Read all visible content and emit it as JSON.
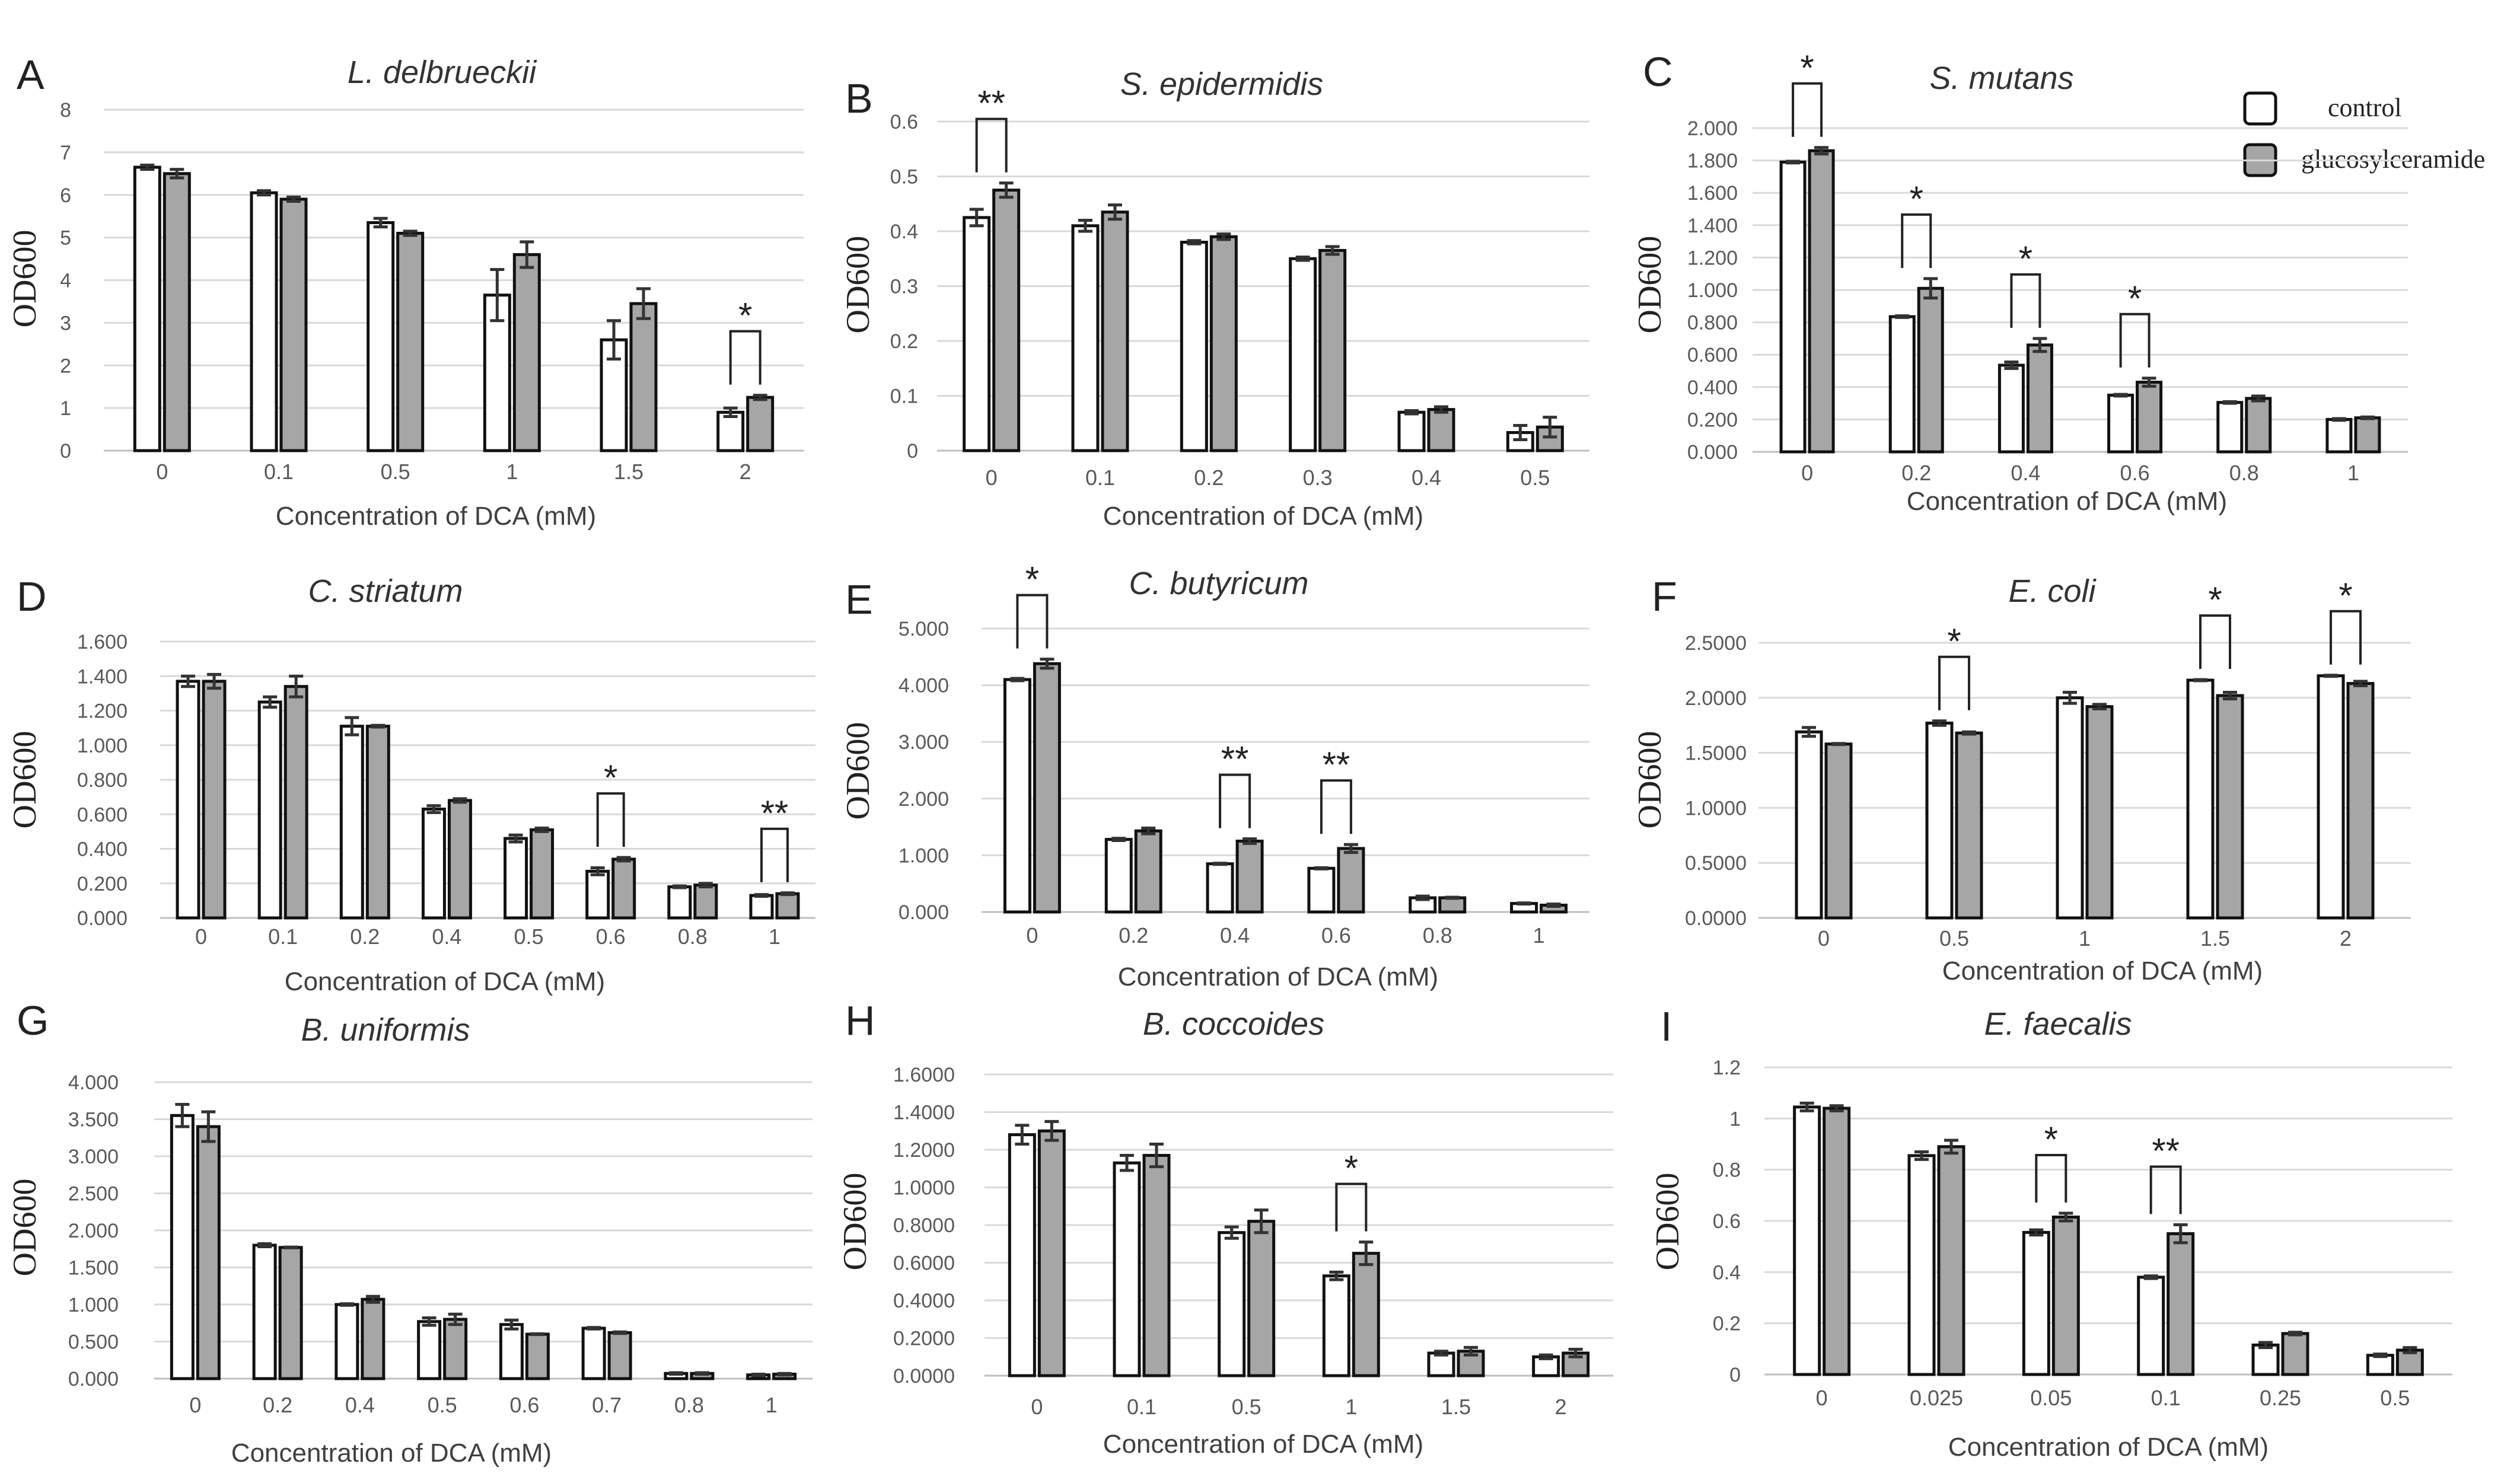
{
  "legend": {
    "items": [
      {
        "label": "control",
        "color": "#ffffff"
      },
      {
        "label": "glucosylceramide",
        "color": "#a6a6a6"
      }
    ]
  },
  "colors": {
    "control": "#ffffff",
    "glucosylceramide": "#a6a6a6",
    "grid": "#d9d9d9"
  },
  "chart_data": [
    {
      "type": "bar",
      "panel": "A",
      "title": "L. delbrueckii",
      "xlabel": "Concentration of DCA (mM)",
      "ylabel": "OD600",
      "categories": [
        "0",
        "0.1",
        "0.5",
        "1",
        "1.5",
        "2"
      ],
      "yticks": [
        "0",
        "1",
        "2",
        "3",
        "4",
        "5",
        "6",
        "7",
        "8"
      ],
      "ylim": [
        0,
        8
      ],
      "series": [
        {
          "name": "control",
          "values": [
            6.65,
            6.05,
            5.35,
            3.65,
            2.6,
            0.9
          ],
          "errors": [
            0.05,
            0.05,
            0.1,
            0.6,
            0.45,
            0.1
          ]
        },
        {
          "name": "glucosylceramide",
          "values": [
            6.5,
            5.9,
            5.1,
            4.6,
            3.45,
            1.25
          ],
          "errors": [
            0.1,
            0.05,
            0.05,
            0.3,
            0.35,
            0.05
          ]
        }
      ],
      "annotations": [
        {
          "category": "2",
          "text": "*"
        }
      ]
    },
    {
      "type": "bar",
      "panel": "B",
      "title": "S. epidermidis",
      "xlabel": "Concentration of DCA (mM)",
      "ylabel": "OD600",
      "categories": [
        "0",
        "0.1",
        "0.2",
        "0.3",
        "0.4",
        "0.5"
      ],
      "yticks": [
        "0",
        "0.1",
        "0.2",
        "0.3",
        "0.4",
        "0.5",
        "0.6"
      ],
      "ylim": [
        0,
        0.6
      ],
      "series": [
        {
          "name": "control",
          "values": [
            0.425,
            0.41,
            0.38,
            0.35,
            0.07,
            0.033
          ],
          "errors": [
            0.015,
            0.01,
            0.003,
            0.003,
            0.003,
            0.013
          ]
        },
        {
          "name": "glucosylceramide",
          "values": [
            0.475,
            0.435,
            0.39,
            0.365,
            0.075,
            0.043
          ],
          "errors": [
            0.013,
            0.013,
            0.005,
            0.007,
            0.005,
            0.018
          ]
        }
      ],
      "annotations": [
        {
          "category": "0",
          "text": "**"
        }
      ]
    },
    {
      "type": "bar",
      "panel": "C",
      "title": "S. mutans",
      "xlabel": "Concentration of DCA (mM)",
      "ylabel": "OD600",
      "categories": [
        "0",
        "0.2",
        "0.4",
        "0.6",
        "0.8",
        "1"
      ],
      "yticks": [
        "0.000",
        "0.200",
        "0.400",
        "0.600",
        "0.800",
        "1.000",
        "1.200",
        "1.400",
        "1.600",
        "1.800",
        "2.000"
      ],
      "ylim": [
        0,
        2
      ],
      "series": [
        {
          "name": "control",
          "values": [
            1.79,
            0.835,
            0.535,
            0.35,
            0.305,
            0.2
          ],
          "errors": [
            0.005,
            0.005,
            0.02,
            0.005,
            0.005,
            0.005
          ]
        },
        {
          "name": "glucosylceramide",
          "values": [
            1.86,
            1.01,
            0.66,
            0.43,
            0.33,
            0.21
          ],
          "errors": [
            0.02,
            0.06,
            0.04,
            0.025,
            0.015,
            0.005
          ]
        }
      ],
      "annotations": [
        {
          "category": "0",
          "text": "*"
        },
        {
          "category": "0.2",
          "text": "*"
        },
        {
          "category": "0.4",
          "text": "*"
        },
        {
          "category": "0.6",
          "text": "*"
        }
      ]
    },
    {
      "type": "bar",
      "panel": "D",
      "title": "C. striatum",
      "xlabel": "Concentration of DCA (mM)",
      "ylabel": "OD600",
      "categories": [
        "0",
        "0.1",
        "0.2",
        "0.4",
        "0.5",
        "0.6",
        "0.8",
        "1"
      ],
      "yticks": [
        "0.000",
        "0.200",
        "0.400",
        "0.600",
        "0.800",
        "1.000",
        "1.200",
        "1.400",
        "1.600"
      ],
      "ylim": [
        0,
        1.6
      ],
      "series": [
        {
          "name": "control",
          "values": [
            1.37,
            1.25,
            1.11,
            0.63,
            0.46,
            0.27,
            0.18,
            0.13
          ],
          "errors": [
            0.03,
            0.03,
            0.05,
            0.02,
            0.02,
            0.02,
            0.005,
            0.005
          ]
        },
        {
          "name": "glucosylceramide",
          "values": [
            1.37,
            1.34,
            1.11,
            0.68,
            0.51,
            0.34,
            0.19,
            0.14
          ],
          "errors": [
            0.04,
            0.06,
            0.005,
            0.01,
            0.01,
            0.01,
            0.01,
            0.005
          ]
        }
      ],
      "annotations": [
        {
          "category": "0.6",
          "text": "*"
        },
        {
          "category": "1",
          "text": "**"
        }
      ]
    },
    {
      "type": "bar",
      "panel": "E",
      "title": "C. butyricum",
      "xlabel": "Concentration of DCA (mM)",
      "ylabel": "OD600",
      "categories": [
        "0",
        "0.2",
        "0.4",
        "0.6",
        "0.8",
        "1"
      ],
      "yticks": [
        "0.000",
        "1.000",
        "2.000",
        "3.000",
        "4.000",
        "5.000"
      ],
      "ylim": [
        0,
        5
      ],
      "series": [
        {
          "name": "control",
          "values": [
            4.1,
            1.28,
            0.85,
            0.77,
            0.25,
            0.15
          ],
          "errors": [
            0.02,
            0.02,
            0.01,
            0.01,
            0.03,
            0.01
          ]
        },
        {
          "name": "glucosylceramide",
          "values": [
            4.38,
            1.43,
            1.25,
            1.12,
            0.25,
            0.12
          ],
          "errors": [
            0.08,
            0.05,
            0.04,
            0.07,
            0.01,
            0.02
          ]
        }
      ],
      "annotations": [
        {
          "category": "0",
          "text": "*"
        },
        {
          "category": "0.4",
          "text": "**"
        },
        {
          "category": "0.6",
          "text": "**"
        }
      ]
    },
    {
      "type": "bar",
      "panel": "F",
      "title": "E. coli",
      "xlabel": "Concentration of DCA (mM)",
      "ylabel": "OD600",
      "categories": [
        "0",
        "0.5",
        "1",
        "1.5",
        "2"
      ],
      "yticks": [
        "0.0000",
        "0.5000",
        "1.0000",
        "1.5000",
        "2.0000",
        "2.5000"
      ],
      "ylim": [
        0,
        2.5
      ],
      "series": [
        {
          "name": "control",
          "values": [
            1.69,
            1.77,
            2.0,
            2.16,
            2.2
          ],
          "errors": [
            0.04,
            0.02,
            0.05,
            0.005,
            0.005
          ]
        },
        {
          "name": "glucosylceramide",
          "values": [
            1.58,
            1.68,
            1.92,
            2.02,
            2.13
          ],
          "errors": [
            0.005,
            0.01,
            0.02,
            0.03,
            0.02
          ]
        }
      ],
      "annotations": [
        {
          "category": "0.5",
          "text": "*"
        },
        {
          "category": "1.5",
          "text": "*"
        },
        {
          "category": "2",
          "text": "*"
        }
      ]
    },
    {
      "type": "bar",
      "panel": "G",
      "title": "B. uniformis",
      "xlabel": "Concentration of DCA (mM)",
      "ylabel": "OD600",
      "categories": [
        "0",
        "0.2",
        "0.4",
        "0.5",
        "0.6",
        "0.7",
        "0.8",
        "1"
      ],
      "yticks": [
        "0.000",
        "0.500",
        "1.000",
        "1.500",
        "2.000",
        "2.500",
        "3.000",
        "3.500",
        "4.000"
      ],
      "ylim": [
        0,
        4
      ],
      "series": [
        {
          "name": "control",
          "values": [
            3.55,
            1.8,
            1.0,
            0.77,
            0.73,
            0.68,
            0.07,
            0.05
          ],
          "errors": [
            0.15,
            0.02,
            0.01,
            0.05,
            0.06,
            0.01,
            0.01,
            0.01
          ]
        },
        {
          "name": "glucosylceramide",
          "values": [
            3.4,
            1.77,
            1.07,
            0.8,
            0.6,
            0.62,
            0.07,
            0.06
          ],
          "errors": [
            0.2,
            0.005,
            0.04,
            0.07,
            0.005,
            0.01,
            0.01,
            0.01
          ]
        }
      ],
      "annotations": []
    },
    {
      "type": "bar",
      "panel": "H",
      "title": "B. coccoides",
      "xlabel": "Concentration of DCA (mM)",
      "ylabel": "OD600",
      "categories": [
        "0",
        "0.1",
        "0.5",
        "1",
        "1.5",
        "2"
      ],
      "yticks": [
        "0.0000",
        "0.2000",
        "0.4000",
        "0.6000",
        "0.8000",
        "1.0000",
        "1.2000",
        "1.4000",
        "1.6000"
      ],
      "ylim": [
        0,
        1.6
      ],
      "series": [
        {
          "name": "control",
          "values": [
            1.28,
            1.13,
            0.76,
            0.53,
            0.12,
            0.1
          ],
          "errors": [
            0.05,
            0.04,
            0.03,
            0.02,
            0.01,
            0.01
          ]
        },
        {
          "name": "glucosylceramide",
          "values": [
            1.3,
            1.17,
            0.82,
            0.65,
            0.13,
            0.12
          ],
          "errors": [
            0.05,
            0.06,
            0.06,
            0.06,
            0.02,
            0.02
          ]
        }
      ],
      "annotations": [
        {
          "category": "1",
          "text": "*"
        }
      ]
    },
    {
      "type": "bar",
      "panel": "I",
      "title": "E. faecalis",
      "xlabel": "Concentration of DCA (mM)",
      "ylabel": "OD600",
      "categories": [
        "0",
        "0.025",
        "0.05",
        "0.1",
        "0.25",
        "0.5"
      ],
      "yticks": [
        "0",
        "0.2",
        "0.4",
        "0.6",
        "0.8",
        "1",
        "1.2"
      ],
      "ylim": [
        0,
        1.2
      ],
      "series": [
        {
          "name": "control",
          "values": [
            1.045,
            0.855,
            0.555,
            0.38,
            0.115,
            0.075
          ],
          "errors": [
            0.015,
            0.015,
            0.01,
            0.005,
            0.01,
            0.005
          ]
        },
        {
          "name": "glucosylceramide",
          "values": [
            1.04,
            0.89,
            0.615,
            0.55,
            0.16,
            0.095
          ],
          "errors": [
            0.01,
            0.025,
            0.015,
            0.035,
            0.005,
            0.01
          ]
        }
      ],
      "annotations": [
        {
          "category": "0.05",
          "text": "*"
        },
        {
          "category": "0.1",
          "text": "**"
        }
      ]
    }
  ]
}
